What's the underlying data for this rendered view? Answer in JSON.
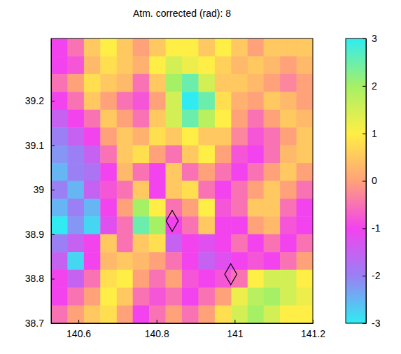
{
  "chart_data": {
    "type": "heatmap",
    "title": "Atm. corrected (rad): 8",
    "xlim": [
      140.53,
      141.2
    ],
    "ylim": [
      38.7,
      39.34
    ],
    "xticks": [
      140.6,
      140.8,
      141,
      141.2
    ],
    "yticks": [
      38.7,
      38.8,
      38.9,
      39,
      39.1,
      39.2
    ],
    "x": [
      140.551,
      140.593,
      140.635,
      140.677,
      140.719,
      140.76,
      140.802,
      140.844,
      140.886,
      140.928,
      140.97,
      141.012,
      141.054,
      141.095,
      141.137,
      141.179
    ],
    "y": [
      39.32,
      39.28,
      39.24,
      39.2,
      39.16,
      39.12,
      39.08,
      39.04,
      39.0,
      38.96,
      38.92,
      38.88,
      38.84,
      38.8,
      38.76,
      38.72
    ],
    "z": [
      [
        -1,
        -0.5,
        0.5,
        1,
        0.5,
        0,
        0.5,
        1,
        1,
        0.5,
        1,
        0.5,
        0,
        0.5,
        0.5,
        0.5
      ],
      [
        -1,
        -0.8,
        0.3,
        0.8,
        0.5,
        0.2,
        1,
        1.5,
        1.2,
        1,
        0.6,
        0.3,
        0.5,
        0.3,
        0,
        0.3
      ],
      [
        -0.5,
        0,
        0.8,
        0.5,
        0.3,
        -0.5,
        0.5,
        2,
        2.5,
        1.5,
        0.5,
        0.5,
        0.3,
        0,
        -0.3,
        0
      ],
      [
        -1,
        -0.5,
        0.5,
        0,
        -0.5,
        -0.8,
        0,
        1.5,
        3,
        2.5,
        0.8,
        0.2,
        0,
        0.5,
        0.3,
        0
      ],
      [
        -1.5,
        -1,
        -0.5,
        0.5,
        0,
        -0.5,
        0.5,
        1.5,
        2.5,
        1.8,
        1,
        0,
        -0.5,
        0,
        0.5,
        0.3
      ],
      [
        -2,
        -1.5,
        -1,
        0,
        0.5,
        0.2,
        0.8,
        0.5,
        1,
        0.5,
        0.5,
        -0.3,
        -0.8,
        -0.5,
        0,
        0.5
      ],
      [
        -2.2,
        -2,
        -1.5,
        -0.5,
        0.5,
        0.8,
        0,
        -0.5,
        0.5,
        1,
        0,
        -0.8,
        -1,
        -0.5,
        0.3,
        0.5
      ],
      [
        -2.5,
        -2,
        -1.8,
        -1,
        0.3,
        -0.5,
        -1,
        0.5,
        -0.5,
        0,
        -0.5,
        -1,
        -0.5,
        0,
        0.5,
        0
      ],
      [
        -2,
        -2.5,
        -1.5,
        -0.8,
        -0.5,
        0.5,
        -1,
        0.5,
        0.8,
        -0.5,
        -1,
        -0.5,
        0,
        0.5,
        0,
        -0.5
      ],
      [
        -2.5,
        -2,
        -2.5,
        -1,
        0,
        2,
        1,
        -0.5,
        0,
        1,
        -0.8,
        -0.5,
        0.5,
        0.5,
        -0.5,
        -1
      ],
      [
        -3,
        -2.2,
        -2.8,
        -1.2,
        -0.5,
        2.5,
        2,
        -1,
        -0.5,
        0.5,
        -1,
        -1,
        0,
        0.3,
        -0.8,
        -1
      ],
      [
        -2,
        -1.5,
        -1,
        0.5,
        -0.5,
        0.5,
        0.8,
        -1.5,
        -1,
        -1.2,
        -1,
        -0.5,
        -1,
        -0.5,
        -1,
        -0.5
      ],
      [
        -1.5,
        -2.8,
        -1,
        0.3,
        0.5,
        0.3,
        0,
        -0.5,
        -1,
        -1.5,
        -1.2,
        -1,
        -0.8,
        -1,
        -0.5,
        0
      ],
      [
        -1,
        -1.5,
        -0.5,
        0.8,
        1,
        0,
        -0.5,
        0,
        -0.8,
        -1,
        -0.8,
        -0.5,
        1,
        1.5,
        1.5,
        1
      ],
      [
        -1,
        -0.5,
        0,
        1,
        0.5,
        -0.5,
        -0.8,
        -0.5,
        -1,
        -0.5,
        0,
        1.2,
        1.8,
        2,
        1.5,
        1.2
      ],
      [
        -0.5,
        0,
        0.5,
        0.8,
        0,
        -1,
        -0.5,
        0,
        -0.5,
        0,
        0.8,
        1.5,
        2,
        1.5,
        1,
        1
      ]
    ],
    "colorbar": {
      "range": [
        -3,
        3
      ],
      "ticks": [
        -3,
        -2,
        -1,
        0,
        1,
        2,
        3
      ]
    },
    "series": [
      {
        "type": "scatter",
        "marker": "diamond",
        "x": [
          140.84,
          140.99
        ],
        "values": [
          38.93,
          38.81
        ]
      }
    ]
  }
}
